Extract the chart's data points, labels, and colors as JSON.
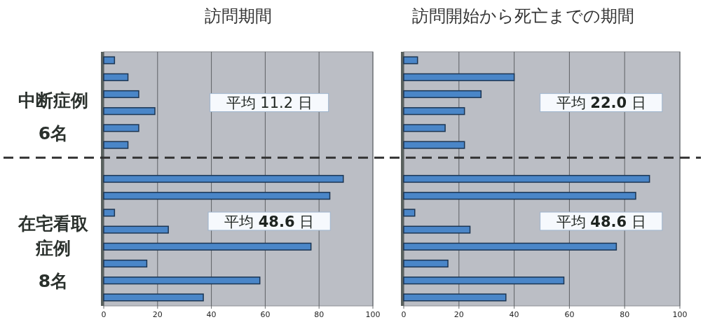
{
  "chart_data": [
    {
      "type": "bar",
      "orientation": "horizontal",
      "title": "訪問期間",
      "categories": [
        null,
        null,
        null,
        null,
        null,
        null,
        null,
        null,
        null,
        null,
        null,
        null,
        null,
        null,
        null
      ],
      "values": [
        4,
        9,
        13,
        19,
        13,
        9,
        null,
        89,
        84,
        4,
        24,
        77,
        16,
        58,
        37
      ],
      "color": "#4a86c8",
      "xlim": [
        0,
        100
      ],
      "xticks": [
        0,
        20,
        40,
        60,
        80,
        100
      ],
      "grid": "x",
      "annotations": [
        "中断症例",
        "6名",
        "平均 11.2 日",
        "在宅看取症例",
        "8名",
        "平均 **48.6** 日"
      ]
    },
    {
      "type": "bar",
      "orientation": "horizontal",
      "title": "訪問開始から死亡までの期間",
      "categories": [
        null,
        null,
        null,
        null,
        null,
        null,
        null,
        null,
        null,
        null,
        null,
        null,
        null,
        null,
        null
      ],
      "values": [
        5,
        40,
        28,
        22,
        15,
        22,
        null,
        89,
        84,
        4,
        24,
        77,
        16,
        58,
        37
      ],
      "color": "#4a86c8",
      "xlim": [
        0,
        100
      ],
      "xticks": [
        0,
        20,
        40,
        60,
        80,
        100
      ],
      "grid": "x",
      "annotations": [
        "平均 **22.0** 日",
        "平均 **48.6** 日"
      ]
    }
  ]
}
